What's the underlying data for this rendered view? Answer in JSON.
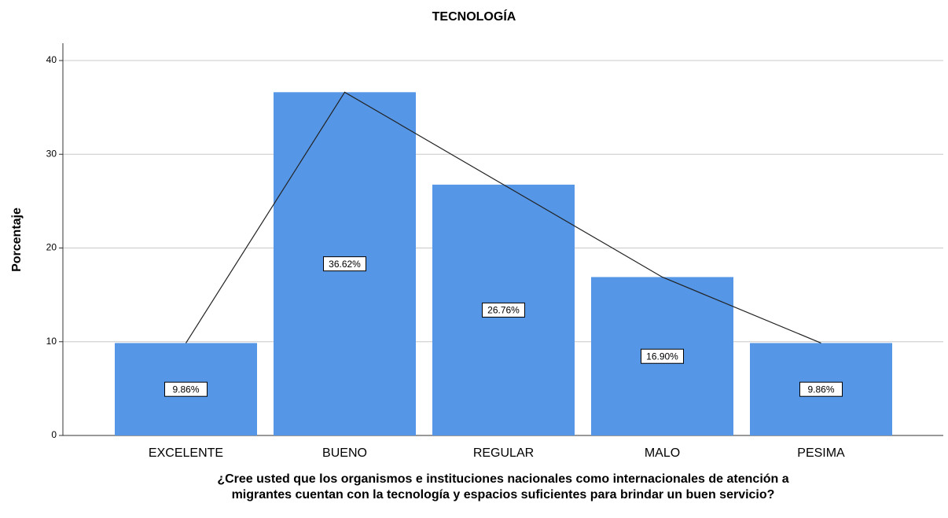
{
  "chart_data": {
    "type": "bar",
    "title": "TECNOLOGÍA",
    "ylabel": "Porcentaje",
    "xlabel": [
      "¿Cree usted que los organismos e instituciones nacionales como internacionales de atención a",
      "migrantes cuentan con la tecnología y espacios suficientes para brindar un buen servicio?"
    ],
    "categories": [
      "EXCELENTE",
      "BUENO",
      "REGULAR",
      "MALO",
      "PESIMA"
    ],
    "values": [
      9.86,
      36.62,
      26.76,
      16.9,
      9.86
    ],
    "value_labels": [
      "9.86%",
      "36.62%",
      "26.76%",
      "16.90%",
      "9.86%"
    ],
    "color": "#5596e6",
    "line_color": "#222222",
    "ylim": [
      0,
      40
    ],
    "yticks": [
      0,
      10,
      20,
      30,
      40
    ],
    "grid": true
  }
}
